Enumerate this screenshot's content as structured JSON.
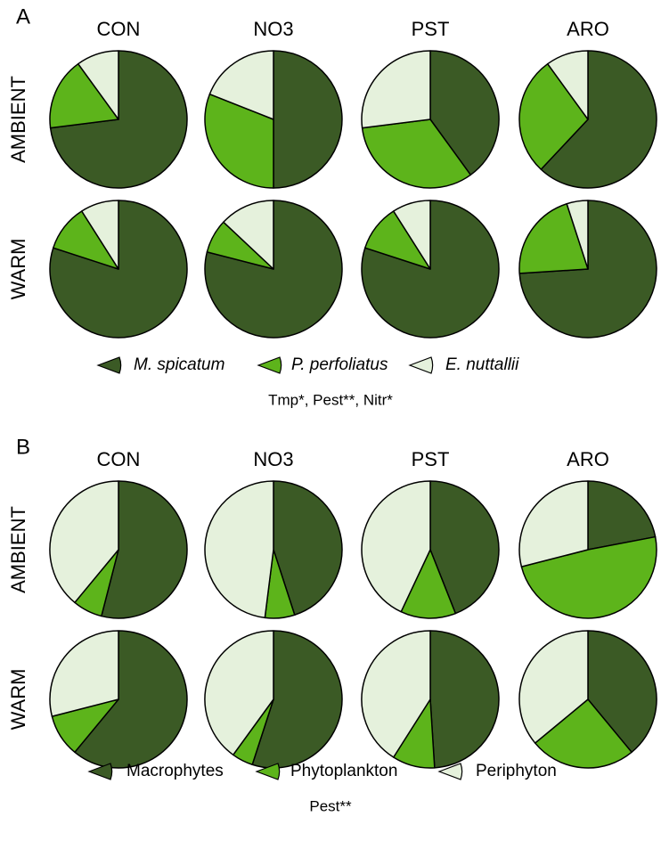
{
  "chart_data": [
    {
      "type": "pie",
      "panel": "A",
      "columns": [
        "CON",
        "NO3",
        "PST",
        "ARO"
      ],
      "rows": [
        "AMBIENT",
        "WARM"
      ],
      "series": [
        {
          "name": "M. spicatum",
          "color": "#3b5a25",
          "values": [
            73,
            50,
            40,
            62,
            80,
            79,
            80,
            74
          ]
        },
        {
          "name": "P. perfoliatus",
          "color": "#5db41b",
          "values": [
            17,
            31,
            33,
            28,
            11,
            8,
            11,
            21
          ]
        },
        {
          "name": "E. nuttallii",
          "color": "#e5f1dc",
          "values": [
            10,
            19,
            27,
            10,
            9,
            13,
            9,
            5
          ]
        }
      ],
      "legend_italic": true,
      "note": "Tmp*, Pest**, Nitr*"
    },
    {
      "type": "pie",
      "panel": "B",
      "columns": [
        "CON",
        "NO3",
        "PST",
        "ARO"
      ],
      "rows": [
        "AMBIENT",
        "WARM"
      ],
      "series": [
        {
          "name": "Macrophytes",
          "color": "#3b5a25",
          "values": [
            54,
            45,
            44,
            22,
            61,
            55,
            49,
            39
          ]
        },
        {
          "name": "Phytoplankton",
          "color": "#5db41b",
          "values": [
            7,
            7,
            13,
            49,
            10,
            5,
            10,
            25
          ]
        },
        {
          "name": "Periphyton",
          "color": "#e5f1dc",
          "values": [
            39,
            48,
            43,
            29,
            29,
            40,
            41,
            36
          ]
        }
      ],
      "legend_italic": false,
      "note": "Pest**"
    }
  ]
}
